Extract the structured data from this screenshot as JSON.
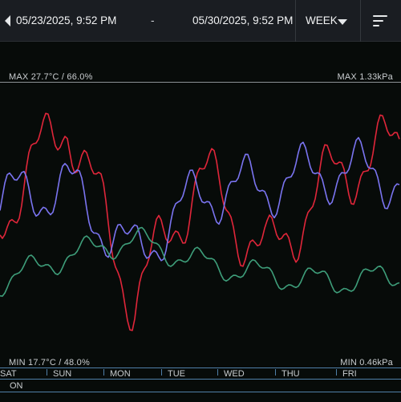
{
  "header": {
    "start_date": "05/23/2025, 9:52 PM",
    "separator": "-",
    "end_date": "05/30/2025, 9:52 PM",
    "range_label": "WEEK"
  },
  "chart": {
    "max_left": "MAX 27.7°C / 66.0%",
    "max_right": "MAX 1.33kPa",
    "min_left": "MIN 17.7°C / 48.0%",
    "min_right": "MIN 0.46kPa",
    "days": [
      "SAT",
      "SUN",
      "MON",
      "TUE",
      "WED",
      "THU",
      "FRI"
    ],
    "state_label": "ON",
    "colors": {
      "temperature": "#e0263a",
      "humidity": "#7a74f0",
      "vpd": "#3e9e7a"
    }
  },
  "chart_data": {
    "type": "line",
    "categories": [
      "SAT",
      "SUN",
      "MON",
      "TUE",
      "WED",
      "THU",
      "FRI"
    ],
    "series": [
      {
        "values": [
          23.0,
          26.5,
          20.0,
          24.5,
          21.5,
          24.5,
          25.5
        ]
      },
      {
        "values": [
          58.5,
          59.5,
          55.0,
          59.0,
          59.5,
          60.5,
          60.0
        ]
      },
      {
        "values": [
          0.72,
          0.8,
          0.85,
          0.78,
          0.74,
          0.72,
          0.74
        ]
      }
    ],
    "ylim_left": [
      17.7,
      27.7
    ],
    "ylim_humidity": [
      48.0,
      66.0
    ],
    "ylim_right": [
      0.46,
      1.33
    ]
  }
}
